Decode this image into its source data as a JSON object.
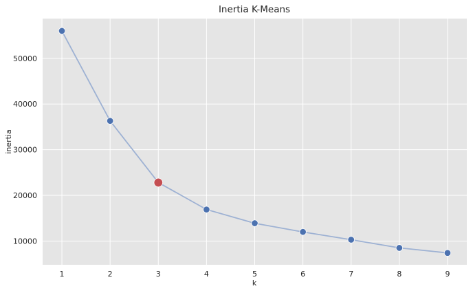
{
  "chart_data": {
    "type": "line",
    "title": "Inertia K-Means",
    "xlabel": "k",
    "ylabel": "inertia",
    "x": [
      1,
      2,
      3,
      4,
      5,
      6,
      7,
      8,
      9
    ],
    "series": [
      {
        "name": "inertia",
        "values": [
          56000,
          36300,
          22800,
          16900,
          13900,
          12000,
          10300,
          8500,
          7400
        ]
      }
    ],
    "highlight": {
      "x": 3,
      "value": 22800
    },
    "xticks": [
      1,
      2,
      3,
      4,
      5,
      6,
      7,
      8,
      9
    ],
    "yticks": [
      10000,
      20000,
      30000,
      40000,
      50000
    ],
    "xlim": [
      0.6,
      9.4
    ],
    "ylim": [
      4800,
      58700
    ],
    "grid": true,
    "colors": {
      "background": "#e5e5e5",
      "grid": "#ffffff",
      "line": "#9db1d3",
      "marker": "#4c72b0",
      "highlight": "#c44e52"
    }
  }
}
